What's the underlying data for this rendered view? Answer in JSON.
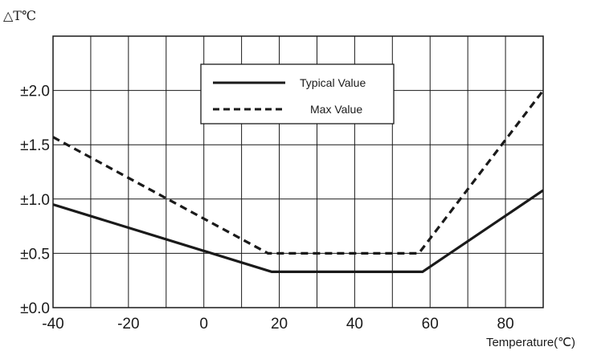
{
  "chart_data": {
    "type": "line",
    "ylabel": "△T℃",
    "xlabel": "Temperature(℃)",
    "xlim": [
      -40,
      90
    ],
    "ylim": [
      0,
      2.5
    ],
    "grid": true,
    "legend_position": "top-center",
    "x_ticks": [
      -40,
      -20,
      0,
      20,
      40,
      60,
      80
    ],
    "x_tick_labels": [
      "-40",
      "-20",
      "0",
      "20",
      "40",
      "60",
      "80"
    ],
    "y_ticks": [
      0,
      0.5,
      1.0,
      1.5,
      2.0
    ],
    "y_tick_labels": [
      "±0.0",
      "±0.5",
      "±1.0",
      "±1.5",
      "±2.0"
    ],
    "series": [
      {
        "name": "Typical Value",
        "style": "solid",
        "x": [
          -40,
          18,
          58,
          90
        ],
        "y": [
          0.95,
          0.33,
          0.33,
          1.08
        ]
      },
      {
        "name": "Max Value",
        "style": "dashed",
        "x": [
          -40,
          17,
          57,
          90
        ],
        "y": [
          1.57,
          0.5,
          0.5,
          2.0
        ]
      }
    ],
    "colors": {
      "line": "#1a1a1a",
      "grid": "#1a1a1a",
      "background": "#ffffff"
    }
  }
}
